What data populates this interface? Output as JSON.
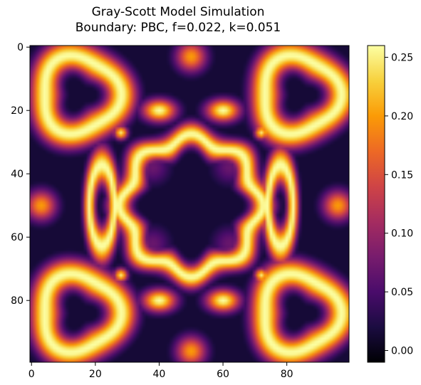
{
  "chart_data": {
    "type": "heatmap",
    "title": "Gray-Scott Model Simulation",
    "subtitle": "Boundary: PBC, f=0.022, k=0.051",
    "xlabel": "",
    "ylabel": "",
    "grid_size": [
      100,
      100
    ],
    "xlim": [
      -0.5,
      99.5
    ],
    "ylim": [
      99.5,
      -0.5
    ],
    "x_ticks": [
      0,
      20,
      40,
      60,
      80
    ],
    "y_ticks": [
      0,
      20,
      40,
      60,
      80
    ],
    "colormap": "inferno",
    "colorbar": {
      "vmin": -0.01,
      "vmax": 0.26,
      "ticks": [
        0.0,
        0.05,
        0.1,
        0.15,
        0.2,
        0.25
      ],
      "tick_labels": [
        "0.00",
        "0.05",
        "0.10",
        "0.15",
        "0.20",
        "0.25"
      ],
      "placement": "right"
    },
    "colormap_stops": [
      "#000004",
      "#1b0c41",
      "#4a0c6b",
      "#781c6d",
      "#a52c60",
      "#cf4446",
      "#ed6925",
      "#fb9b06",
      "#f7d13d",
      "#fcffa4"
    ],
    "features": {
      "corner_ring_centers": [
        [
          15,
          15
        ],
        [
          84,
          15
        ],
        [
          15,
          84
        ],
        [
          84,
          84
        ]
      ],
      "corner_ring_radius": 12,
      "central_ring_center": [
        50,
        50
      ],
      "central_ring_radius": 21,
      "value_high": 0.26,
      "value_background": 0.015
    }
  }
}
